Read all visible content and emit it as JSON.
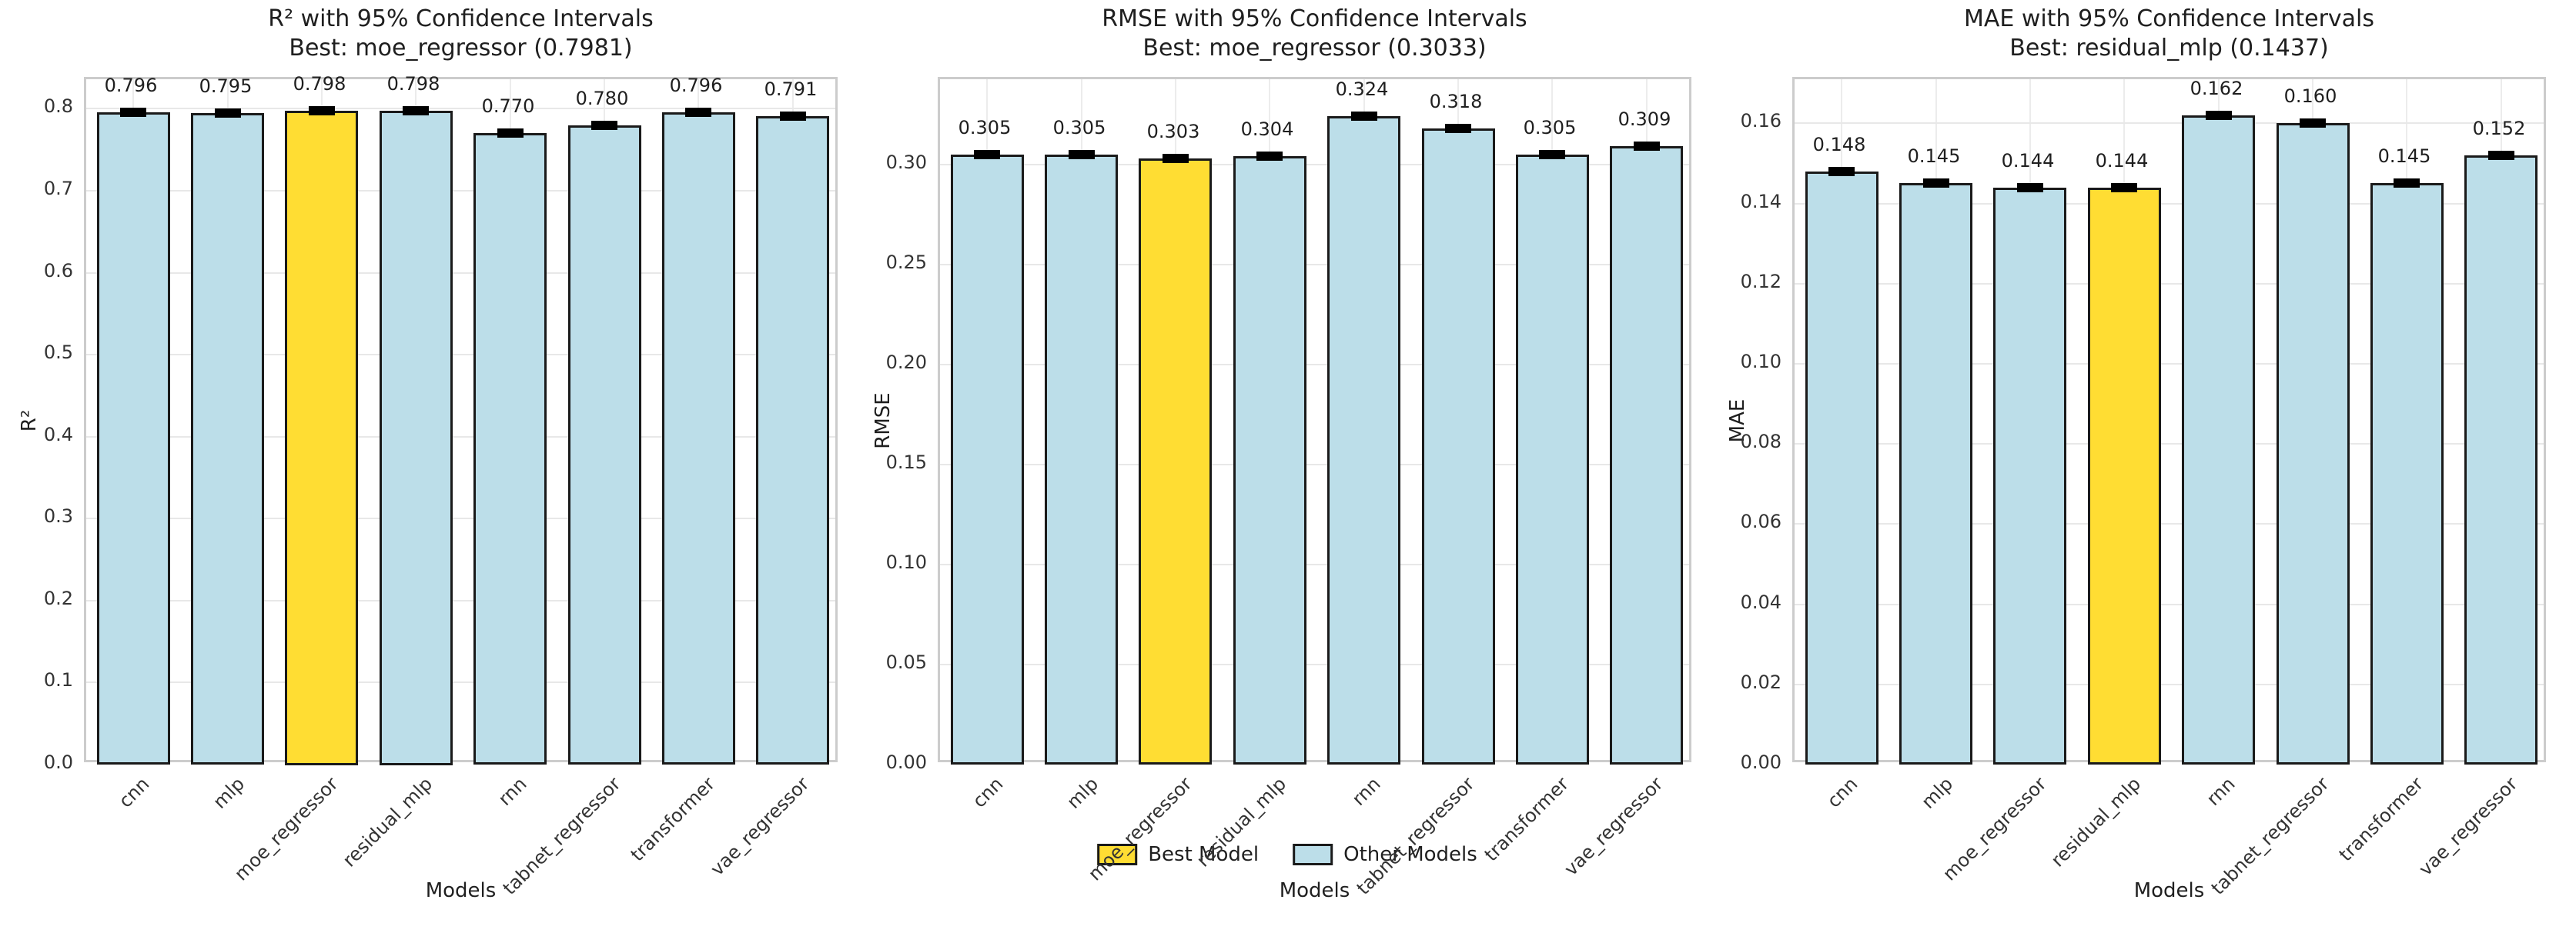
{
  "figure": {
    "background": "#ffffff",
    "text_color": "#262626",
    "grid_color": "#e8e8e8",
    "spine_color": "#cccccc",
    "bar_edge_color": "#1a1a1a",
    "error_bar_color": "#000000",
    "best_color": "#FFDD33",
    "other_color": "#BCDEE9"
  },
  "legend": {
    "items": [
      {
        "label": "Best Model",
        "color": "#FFDD33"
      },
      {
        "label": "Other Models",
        "color": "#BCDEE9"
      }
    ]
  },
  "chart_data": [
    {
      "type": "bar",
      "title": "R² with 95% Confidence Intervals",
      "subtitle": "Best: moe_regressor (0.7981)",
      "xlabel": "Models",
      "ylabel": "R²",
      "categories": [
        "cnn",
        "mlp",
        "moe_regressor",
        "residual_mlp",
        "rnn",
        "tabnet_regressor",
        "transformer",
        "vae_regressor"
      ],
      "values": [
        0.796,
        0.795,
        0.798,
        0.798,
        0.77,
        0.78,
        0.796,
        0.791
      ],
      "value_labels": [
        "0.796",
        "0.795",
        "0.798",
        "0.798",
        "0.770",
        "0.780",
        "0.796",
        "0.791"
      ],
      "best_index": 2,
      "has_error_bars": true,
      "ytick_labels": [
        "0.0",
        "0.1",
        "0.2",
        "0.3",
        "0.4",
        "0.5",
        "0.6",
        "0.7",
        "0.8"
      ],
      "yticks": [
        0.0,
        0.1,
        0.2,
        0.3,
        0.4,
        0.5,
        0.6,
        0.7,
        0.8
      ],
      "ylim": [
        0,
        0.836
      ],
      "grid": true,
      "legend_position": "none"
    },
    {
      "type": "bar",
      "title": "RMSE with 95% Confidence Intervals",
      "subtitle": "Best: moe_regressor (0.3033)",
      "xlabel": "Models",
      "ylabel": "RMSE",
      "categories": [
        "cnn",
        "mlp",
        "moe_regressor",
        "residual_mlp",
        "rnn",
        "tabnet_regressor",
        "transformer",
        "vae_regressor"
      ],
      "values": [
        0.305,
        0.305,
        0.303,
        0.304,
        0.324,
        0.318,
        0.305,
        0.309
      ],
      "value_labels": [
        "0.305",
        "0.305",
        "0.303",
        "0.304",
        "0.324",
        "0.318",
        "0.305",
        "0.309"
      ],
      "best_index": 2,
      "has_error_bars": true,
      "ytick_labels": [
        "0.00",
        "0.05",
        "0.10",
        "0.15",
        "0.20",
        "0.25",
        "0.30"
      ],
      "yticks": [
        0.0,
        0.05,
        0.1,
        0.15,
        0.2,
        0.25,
        0.3
      ],
      "ylim": [
        0,
        0.3425
      ],
      "grid": true,
      "legend_position": "below-center"
    },
    {
      "type": "bar",
      "title": "MAE with 95% Confidence Intervals",
      "subtitle": "Best: residual_mlp (0.1437)",
      "xlabel": "Models",
      "ylabel": "MAE",
      "categories": [
        "cnn",
        "mlp",
        "moe_regressor",
        "residual_mlp",
        "rnn",
        "tabnet_regressor",
        "transformer",
        "vae_regressor"
      ],
      "values": [
        0.148,
        0.145,
        0.144,
        0.144,
        0.162,
        0.16,
        0.145,
        0.152
      ],
      "value_labels": [
        "0.148",
        "0.145",
        "0.144",
        "0.144",
        "0.162",
        "0.160",
        "0.145",
        "0.152"
      ],
      "best_index": 3,
      "has_error_bars": true,
      "ytick_labels": [
        "0.00",
        "0.02",
        "0.04",
        "0.06",
        "0.08",
        "0.10",
        "0.12",
        "0.14",
        "0.16"
      ],
      "yticks": [
        0.0,
        0.02,
        0.04,
        0.06,
        0.08,
        0.1,
        0.12,
        0.14,
        0.16
      ],
      "ylim": [
        0,
        0.171
      ],
      "grid": true,
      "legend_position": "below-center"
    }
  ]
}
